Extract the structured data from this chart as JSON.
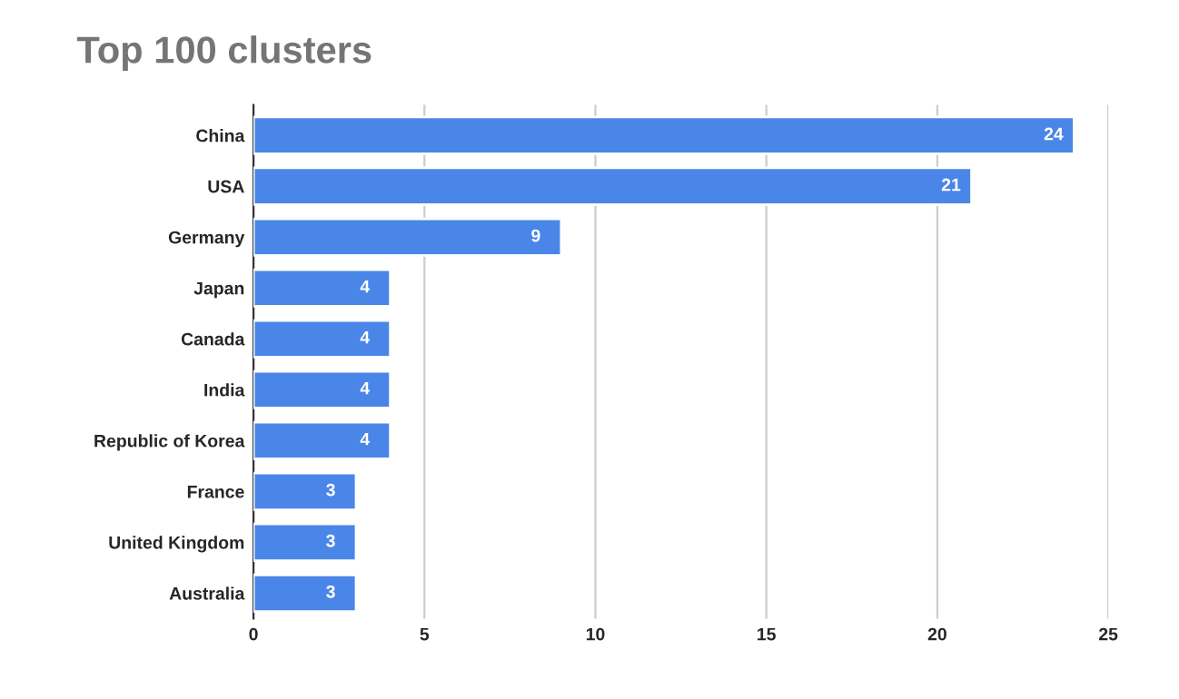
{
  "chart_data": {
    "type": "bar",
    "orientation": "horizontal",
    "title": "Top 100 clusters",
    "categories": [
      "China",
      "USA",
      "Germany",
      "Japan",
      "Canada",
      "India",
      "Republic of Korea",
      "France",
      "United Kingdom",
      "Australia"
    ],
    "values": [
      24,
      21,
      9,
      4,
      4,
      4,
      4,
      3,
      3,
      3
    ],
    "color": "#4a86e8",
    "xlim": [
      0,
      25
    ],
    "xticks": [
      0,
      5,
      10,
      15,
      20,
      25
    ],
    "grid": "x",
    "data_labels": true
  }
}
